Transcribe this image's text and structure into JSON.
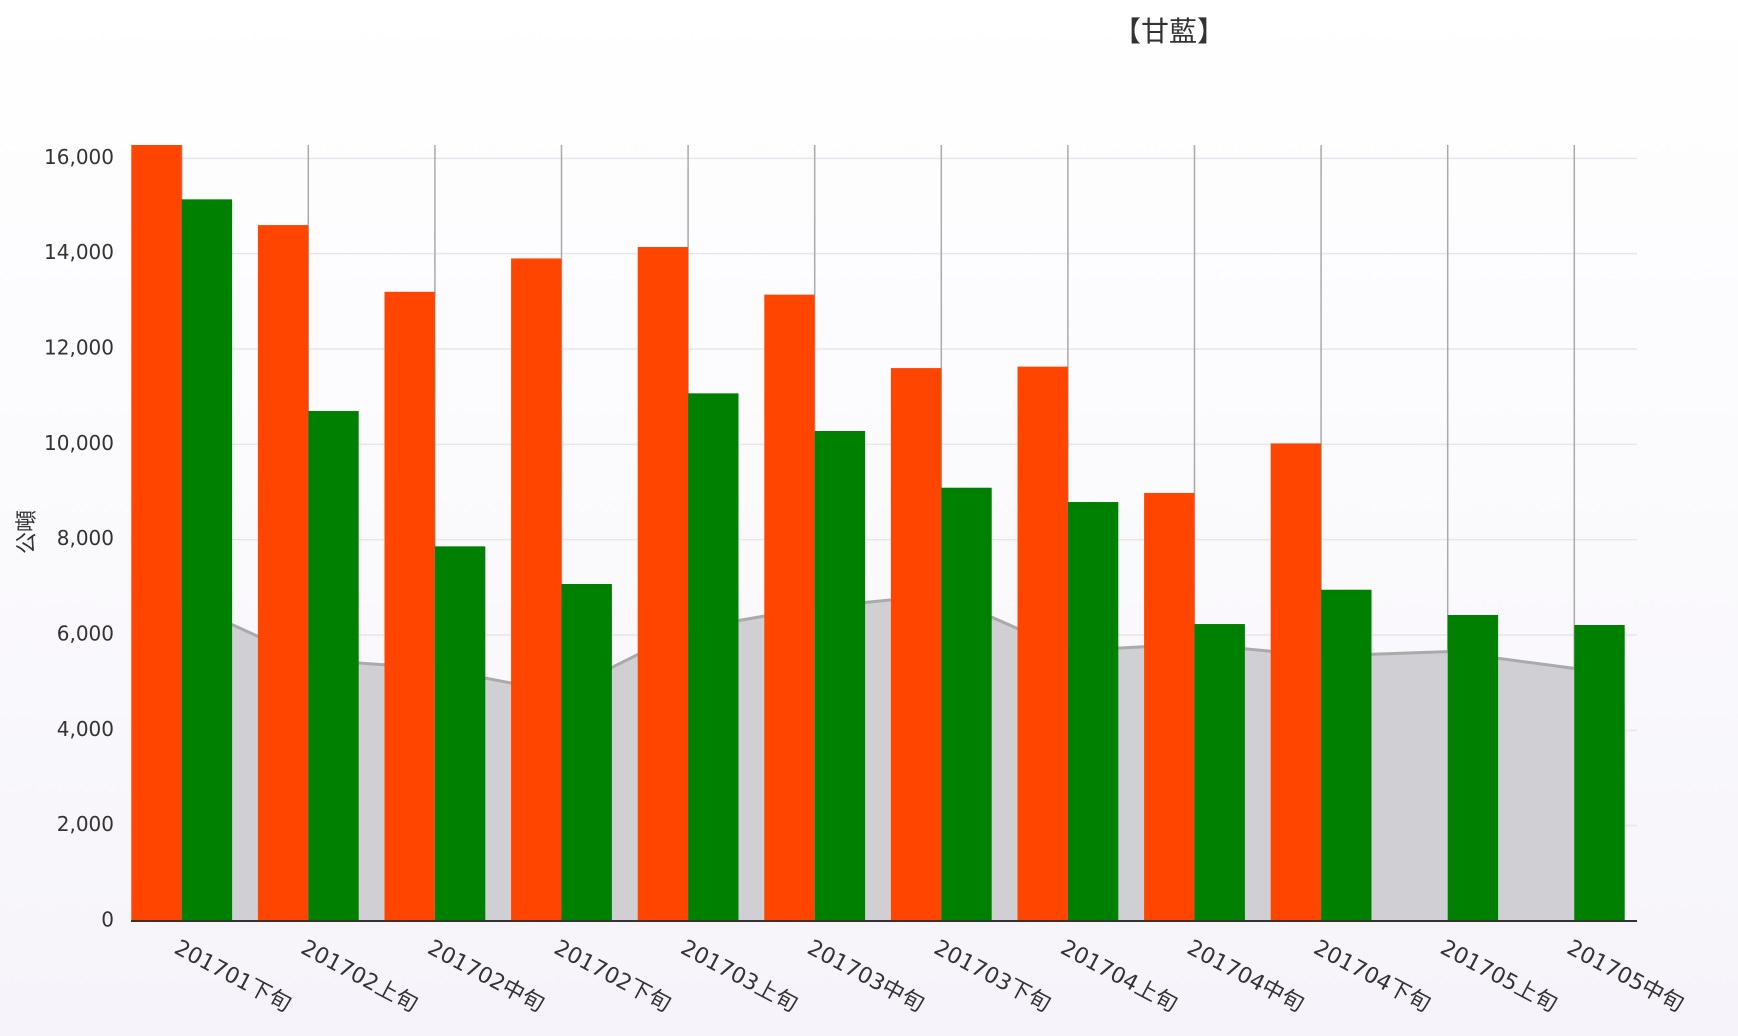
{
  "chart_data": {
    "type": "bar",
    "title": "【甘藍】",
    "y_label": "公噸",
    "categories": [
      "201701下旬",
      "201702上旬",
      "201702中旬",
      "201702下旬",
      "201703上旬",
      "201703中旬",
      "201703下旬",
      "201704上旬",
      "201704中旬",
      "201704下旬",
      "201705上旬",
      "201705中旬"
    ],
    "series": [
      {
        "type": "bar",
        "color": "#ff4500",
        "values": [
          16280,
          14600,
          13200,
          13900,
          14140,
          13140,
          11600,
          11630,
          8980,
          10020,
          null,
          null
        ]
      },
      {
        "type": "bar",
        "color": "#008000",
        "values": [
          15140,
          10700,
          7860,
          7070,
          11070,
          10280,
          9090,
          8790,
          6230,
          6950,
          6420,
          6210
        ]
      },
      {
        "type": "area",
        "color": "#aaaaaa",
        "fill": "#d0d0d4",
        "values": [
          6700,
          5490,
          5300,
          4790,
          6120,
          6580,
          6840,
          5670,
          5810,
          5560,
          5650,
          5300
        ]
      }
    ],
    "ylim": [
      0,
      16280
    ],
    "yticks": [
      0,
      {
        "value": 2000,
        "label": "2,000"
      },
      {
        "value": 4000,
        "label": "4,000"
      },
      {
        "value": 6000,
        "label": "6,000"
      },
      {
        "value": 8000,
        "label": "8,000"
      },
      {
        "value": 10000,
        "label": "10,000"
      },
      {
        "value": 12000,
        "label": "12,000"
      },
      {
        "value": 14000,
        "label": "14,000"
      },
      {
        "value": 16000,
        "label": "16,000"
      }
    ],
    "grid": true
  }
}
